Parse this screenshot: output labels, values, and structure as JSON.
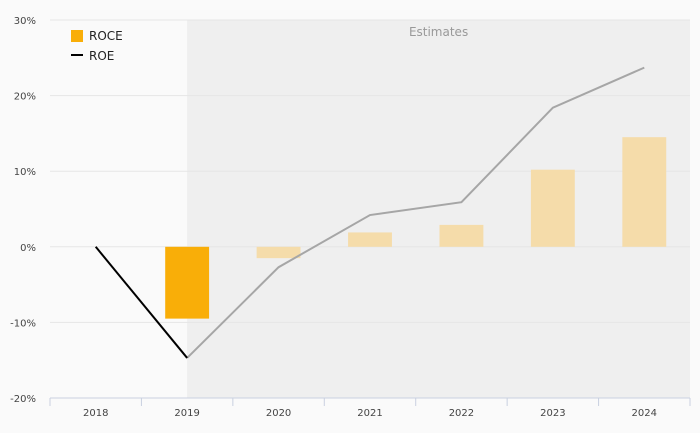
{
  "chart_data": {
    "type": "bar",
    "categories": [
      "2018",
      "2019",
      "2020",
      "2021",
      "2022",
      "2023",
      "2024"
    ],
    "series": [
      {
        "name": "ROCE",
        "kind": "bar",
        "color": "#f9ae08",
        "estimate_color": "#f5dcaa",
        "values": [
          null,
          -9.5,
          -1.5,
          1.9,
          2.9,
          10.2,
          14.5
        ]
      },
      {
        "name": "ROE",
        "kind": "line",
        "color": "#000000",
        "estimate_color": "#a6a6a6",
        "values": [
          0.0,
          -14.7,
          -2.7,
          4.2,
          5.9,
          18.4,
          23.7
        ]
      }
    ],
    "estimates_label": "Estimates",
    "estimates_start_category": "2019",
    "yticks": [
      "30%",
      "20%",
      "10%",
      "0%",
      "-10%",
      "-20%"
    ],
    "ylim": [
      -20,
      30
    ],
    "grid": true,
    "legend_position": "top-left"
  }
}
